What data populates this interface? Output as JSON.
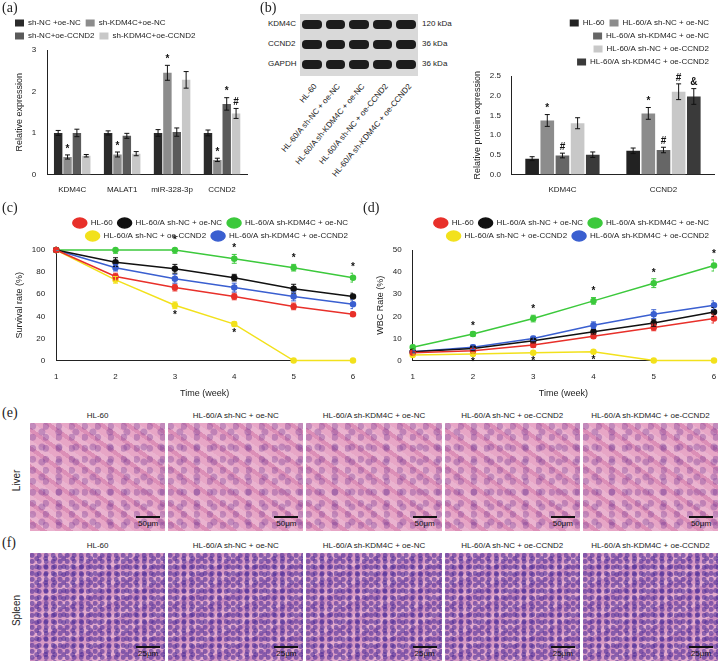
{
  "chart_data": [
    {
      "type": "bar",
      "panel_label": "(a)",
      "y_label": "Relative expression",
      "categories": [
        "KDM4C",
        "MALAT1",
        "miR-328-3p",
        "CCND2"
      ],
      "series": [
        {
          "name": "sh-NC +oe-NC",
          "color": "#2b2b2b",
          "values": [
            1.0,
            1.0,
            1.0,
            1.0
          ],
          "errors": [
            0.06,
            0.05,
            0.08,
            0.07
          ],
          "annotations": [
            null,
            null,
            null,
            null
          ]
        },
        {
          "name": "sh-KDM4C+oe-NC",
          "color": "#8c8c8c",
          "values": [
            0.42,
            0.48,
            2.45,
            0.35
          ],
          "errors": [
            0.05,
            0.06,
            0.18,
            0.04
          ],
          "annotations": [
            "*",
            "*",
            "*",
            "*"
          ]
        },
        {
          "name": "sh-NC+oe-CCND2",
          "color": "#5a5a5a",
          "values": [
            1.0,
            0.93,
            1.02,
            1.7
          ],
          "errors": [
            0.09,
            0.06,
            0.1,
            0.15
          ],
          "annotations": [
            null,
            null,
            null,
            "*"
          ]
        },
        {
          "name": "sh-KDM4C+oe-CCND2",
          "color": "#c8c8c8",
          "values": [
            0.45,
            0.5,
            2.28,
            1.47
          ],
          "errors": [
            0.03,
            0.05,
            0.2,
            0.12
          ],
          "annotations": [
            null,
            null,
            null,
            "#"
          ]
        }
      ],
      "ylim": [
        0,
        3
      ],
      "yticks": [
        0,
        1,
        2,
        3
      ],
      "grid": false,
      "legend": "upper left"
    },
    {
      "type": "bar",
      "y_label": "Relative protein expression",
      "categories": [
        "KDM4C",
        "CCND2"
      ],
      "series": [
        {
          "name": "HL-60",
          "color": "#222222",
          "values": [
            0.4,
            0.6
          ],
          "errors": [
            0.05,
            0.07
          ],
          "annotations": [
            null,
            null
          ]
        },
        {
          "name": "HL-60/A sh-NC + oe-NC",
          "color": "#8c8c8c",
          "values": [
            1.37,
            1.55
          ],
          "errors": [
            0.15,
            0.15
          ],
          "annotations": [
            "*",
            "*"
          ]
        },
        {
          "name": "HL-60/A sh-KDM4C + oe-NC",
          "color": "#666666",
          "values": [
            0.48,
            0.62
          ],
          "errors": [
            0.06,
            0.07
          ],
          "annotations": [
            "#",
            "#"
          ]
        },
        {
          "name": "HL-60/A sh-NC + oe-CCND2",
          "color": "#c8c8c8",
          "values": [
            1.3,
            2.1
          ],
          "errors": [
            0.14,
            0.2
          ],
          "annotations": [
            null,
            "#"
          ]
        },
        {
          "name": "HL-60/A sh-KDM4C + oe-CCND2",
          "color": "#3a3a3a",
          "values": [
            0.5,
            1.98
          ],
          "errors": [
            0.07,
            0.2
          ],
          "annotations": [
            null,
            "&"
          ]
        }
      ],
      "ylim": [
        0,
        2.5
      ],
      "yticks": [
        {
          "value": 0,
          "label": "0.0"
        },
        0.5,
        {
          "value": 1,
          "label": "1.0"
        },
        1.5,
        {
          "value": 2,
          "label": "2.0"
        },
        2.5
      ],
      "grid": false,
      "legend": "upper right"
    },
    {
      "type": "line",
      "panel_label": "(c)",
      "x_label": "Time (week)",
      "y_label": "Survival rate (%)",
      "x": [
        1,
        2,
        3,
        4,
        5,
        6
      ],
      "series": [
        {
          "name": "HL-60",
          "color": "#e8302a",
          "marker": "circle",
          "values": [
            100,
            76,
            66,
            58,
            49,
            42
          ],
          "errors": [
            0,
            3,
            3,
            3,
            3,
            2
          ],
          "annotations": [
            null,
            null,
            null,
            null,
            null,
            null
          ]
        },
        {
          "name": "HL-60/A sh-NC + oe-NC",
          "color": "#111111",
          "marker": "circle",
          "values": [
            100,
            89,
            83,
            75,
            65,
            58
          ],
          "errors": [
            0,
            4,
            4,
            3,
            4,
            3
          ],
          "annotations": [
            null,
            null,
            null,
            null,
            null,
            null
          ]
        },
        {
          "name": "HL-60/A sh-KDM4C + oe-NC",
          "color": "#3cc93c",
          "marker": "circle",
          "values": [
            100,
            100,
            100,
            92,
            84,
            75
          ],
          "errors": [
            0,
            3,
            3,
            4,
            3,
            4
          ],
          "annotations": [
            null,
            null,
            "*",
            "*",
            "*",
            "*"
          ]
        },
        {
          "name": "HL-60/A sh-NC + oe-CCND2",
          "color": "#f2e11c",
          "marker": "circle",
          "values": [
            100,
            73,
            50,
            33,
            0,
            0
          ],
          "errors": [
            0,
            3,
            3,
            2,
            0,
            0
          ],
          "annotations": [
            null,
            null,
            "*",
            "*",
            null,
            null
          ]
        },
        {
          "name": "HL-60/A sh-KDM4C + oe-CCND2",
          "color": "#3a5fd0",
          "marker": "circle",
          "values": [
            100,
            84,
            74,
            66,
            58,
            51
          ],
          "errors": [
            0,
            3,
            4,
            4,
            4,
            4
          ],
          "annotations": [
            null,
            null,
            null,
            null,
            null,
            null
          ]
        }
      ],
      "xlim": [
        1,
        6
      ],
      "xticks": [
        1,
        2,
        3,
        4,
        5,
        6
      ],
      "ylim": [
        0,
        100
      ],
      "yticks": [
        0,
        20,
        40,
        60,
        80,
        100
      ],
      "grid": false,
      "legend": "upper right"
    },
    {
      "type": "line",
      "panel_label": "(d)",
      "x_label": "Time (week)",
      "y_label": "WBC Rate (%)",
      "x": [
        1,
        2,
        3,
        4,
        5,
        6
      ],
      "series": [
        {
          "name": "HL-60",
          "color": "#e8302a",
          "marker": "circle",
          "values": [
            3.5,
            4.5,
            7,
            11,
            15,
            19
          ],
          "errors": [
            0.5,
            1,
            1,
            1,
            1.5,
            2
          ],
          "annotations": [
            null,
            null,
            null,
            null,
            null,
            null
          ]
        },
        {
          "name": "HL-60/A sh-NC + oe-NC",
          "color": "#111111",
          "marker": "circle",
          "values": [
            4,
            5.5,
            9,
            13,
            17,
            22
          ],
          "errors": [
            0.5,
            1,
            1,
            1,
            1.5,
            2
          ],
          "annotations": [
            null,
            null,
            null,
            null,
            null,
            null
          ]
        },
        {
          "name": "HL-60/A sh-KDM4C + oe-NC",
          "color": "#3cc93c",
          "marker": "circle",
          "values": [
            6,
            12,
            19,
            27,
            35,
            43
          ],
          "errors": [
            1,
            1,
            1.5,
            1.5,
            2,
            2.5
          ],
          "annotations": [
            null,
            "*",
            "*",
            "*",
            "*",
            "*"
          ]
        },
        {
          "name": "HL-60/A sh-NC + oe-CCND2",
          "color": "#f2e11c",
          "marker": "circle",
          "values": [
            2.5,
            3,
            3.5,
            4,
            0,
            0
          ],
          "errors": [
            0.5,
            0.5,
            0.5,
            0.5,
            0,
            0
          ],
          "annotations": [
            null,
            "*",
            "*",
            "*",
            null,
            null
          ]
        },
        {
          "name": "HL-60/A sh-KDM4C + oe-CCND2",
          "color": "#3a5fd0",
          "marker": "circle",
          "values": [
            4,
            6,
            10,
            16,
            21,
            25
          ],
          "errors": [
            0.5,
            1,
            1,
            1.5,
            2,
            2
          ],
          "annotations": [
            null,
            null,
            null,
            null,
            null,
            null
          ]
        }
      ],
      "xlim": [
        1,
        6
      ],
      "xticks": [
        1,
        2,
        3,
        4,
        5,
        6
      ],
      "ylim": [
        0,
        50
      ],
      "yticks": [
        0,
        10,
        20,
        30,
        40,
        50
      ],
      "grid": false,
      "legend": "upper right"
    }
  ],
  "blot": {
    "panel_label": "(b)",
    "lanes": [
      "HL-60",
      "HL-60/A sh-NC + oe-NC",
      "HL-60/A sh-KDM4C + oe-NC",
      "HL-60/A sh-NC + oe-CCND2",
      "HL-60/A sh-KDM4C + oe-CCND2"
    ],
    "rows": [
      {
        "protein": "KDM4C",
        "size": "120 kDa"
      },
      {
        "protein": "CCND2",
        "size": "36 kDa"
      },
      {
        "protein": "GAPDH",
        "size": "36 kDa"
      }
    ]
  },
  "histology": [
    {
      "panel_label": "(e)",
      "tissue": "Liver",
      "scale_bar": "50μm",
      "groups": [
        "HL-60",
        "HL-60/A sh-NC + oe-NC",
        "HL-60/A sh-KDM4C + oe-NC",
        "HL-60/A sh-NC + oe-CCND2",
        "HL-60/A sh-KDM4C + oe-CCND2"
      ]
    },
    {
      "panel_label": "(f)",
      "tissue": "Spleen",
      "scale_bar": "25μm",
      "groups": [
        "HL-60",
        "HL-60/A sh-NC + oe-NC",
        "HL-60/A sh-KDM4C + oe-NC",
        "HL-60/A sh-NC + oe-CCND2",
        "HL-60/A sh-KDM4C + oe-CCND2"
      ]
    }
  ]
}
